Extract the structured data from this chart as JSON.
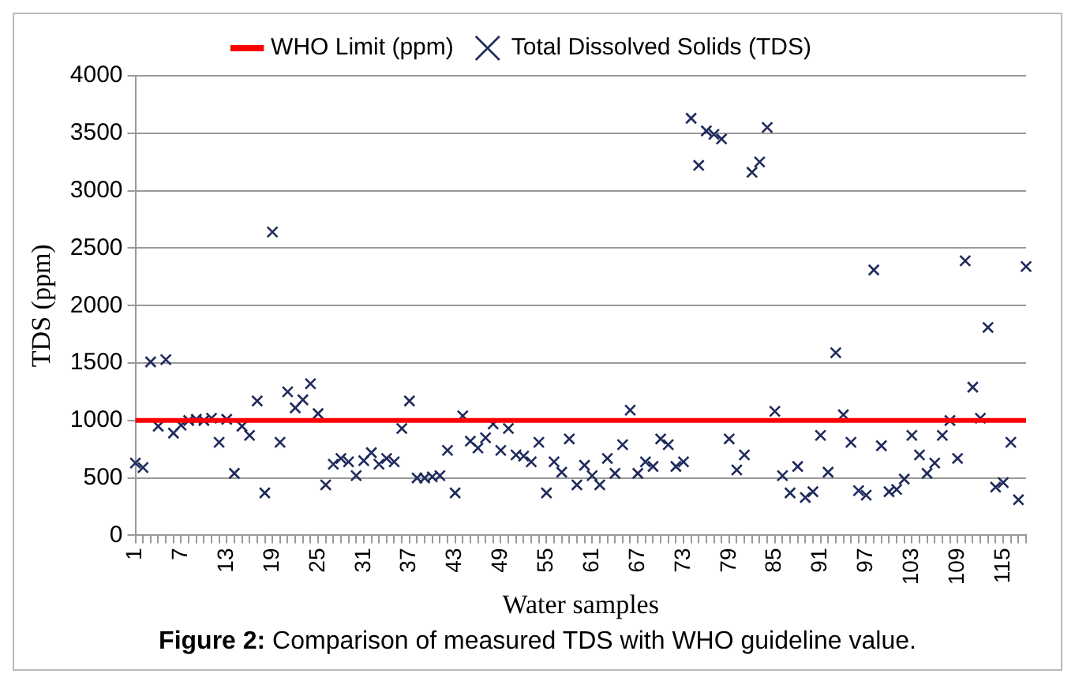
{
  "chart_data": {
    "type": "scatter",
    "xlabel": "Water samples",
    "ylabel": "TDS (ppm)",
    "categories": [
      "1",
      null,
      null,
      null,
      null,
      null,
      "7",
      null,
      null,
      null,
      null,
      null,
      "13",
      null,
      null,
      null,
      null,
      null,
      "19",
      null,
      null,
      null,
      null,
      null,
      "25",
      null,
      null,
      null,
      null,
      null,
      "31",
      null,
      null,
      null,
      null,
      null,
      "37",
      null,
      null,
      null,
      null,
      null,
      "43",
      null,
      null,
      null,
      null,
      null,
      "49",
      null,
      null,
      null,
      null,
      null,
      "55",
      null,
      null,
      null,
      null,
      null,
      "61",
      null,
      null,
      null,
      null,
      null,
      "67",
      null,
      null,
      null,
      null,
      null,
      "73",
      null,
      null,
      null,
      null,
      null,
      "79",
      null,
      null,
      null,
      null,
      null,
      "85",
      null,
      null,
      null,
      null,
      null,
      "91",
      null,
      null,
      null,
      null,
      null,
      "97",
      null,
      null,
      null,
      null,
      null,
      "103",
      null,
      null,
      null,
      null,
      null,
      "109",
      null,
      null,
      null,
      null,
      null,
      "115",
      null,
      null,
      null
    ],
    "series": [
      {
        "name": "WHO Limit (ppm)",
        "type": "line",
        "color": "#ff0000",
        "marker": "none",
        "line_style": "solid",
        "values": [
          1000,
          1000,
          1000,
          1000,
          1000,
          1000,
          1000,
          1000,
          1000,
          1000,
          1000,
          1000,
          1000,
          1000,
          1000,
          1000,
          1000,
          1000,
          1000,
          1000,
          1000,
          1000,
          1000,
          1000,
          1000,
          1000,
          1000,
          1000,
          1000,
          1000,
          1000,
          1000,
          1000,
          1000,
          1000,
          1000,
          1000,
          1000,
          1000,
          1000,
          1000,
          1000,
          1000,
          1000,
          1000,
          1000,
          1000,
          1000,
          1000,
          1000,
          1000,
          1000,
          1000,
          1000,
          1000,
          1000,
          1000,
          1000,
          1000,
          1000,
          1000,
          1000,
          1000,
          1000,
          1000,
          1000,
          1000,
          1000,
          1000,
          1000,
          1000,
          1000,
          1000,
          1000,
          1000,
          1000,
          1000,
          1000,
          1000,
          1000,
          1000,
          1000,
          1000,
          1000,
          1000,
          1000,
          1000,
          1000,
          1000,
          1000,
          1000,
          1000,
          1000,
          1000,
          1000,
          1000,
          1000,
          1000,
          1000,
          1000,
          1000,
          1000,
          1000,
          1000,
          1000,
          1000,
          1000,
          1000,
          1000,
          1000,
          1000,
          1000,
          1000,
          1000,
          1000,
          1000,
          1000,
          1000
        ]
      },
      {
        "name": "Total Dissolved Solids (TDS)",
        "color": "#1f2a5c",
        "marker": "cross",
        "values": [
          630,
          590,
          1510,
          950,
          1530,
          890,
          960,
          1000,
          1010,
          1000,
          1020,
          810,
          1010,
          540,
          950,
          870,
          1170,
          370,
          2640,
          810,
          1250,
          1110,
          1180,
          1320,
          1060,
          440,
          620,
          670,
          640,
          520,
          650,
          720,
          620,
          670,
          640,
          930,
          1170,
          500,
          500,
          510,
          520,
          740,
          370,
          1040,
          820,
          760,
          850,
          970,
          740,
          930,
          700,
          690,
          640,
          810,
          370,
          640,
          550,
          840,
          440,
          610,
          520,
          440,
          670,
          540,
          790,
          1090,
          540,
          640,
          600,
          840,
          790,
          600,
          640,
          3630,
          3220,
          3520,
          3490,
          3450,
          840,
          570,
          700,
          3160,
          3250,
          3550,
          1080,
          520,
          370,
          600,
          330,
          380,
          870,
          550,
          1590,
          1050,
          810,
          390,
          350,
          2310,
          780,
          380,
          400,
          490,
          870,
          700,
          540,
          630,
          870,
          1000,
          670,
          2390,
          1290,
          1020,
          1810,
          420,
          460,
          810,
          310,
          2340
        ]
      }
    ],
    "ylim": [
      0,
      4000
    ],
    "yticks": [
      0,
      500,
      1000,
      1500,
      2000,
      2500,
      3000,
      3500,
      4000
    ],
    "grid": "y",
    "legend": "top",
    "annotations": [
      "Figure 2: Comparison of measured TDS with WHO guideline value."
    ]
  }
}
